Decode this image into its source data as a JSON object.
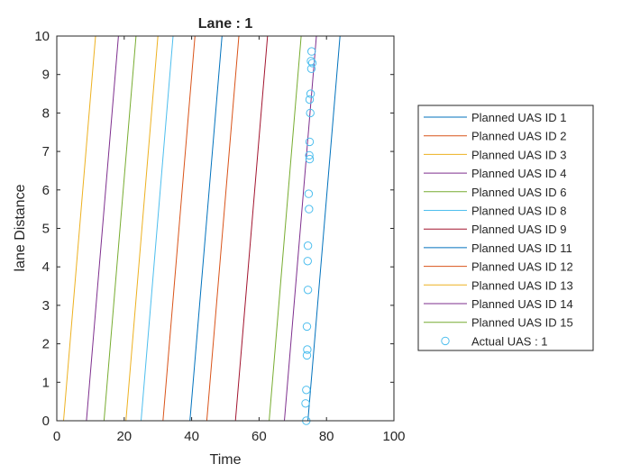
{
  "chart_data": {
    "type": "line",
    "title": "Lane : 1",
    "xlabel": "Time",
    "ylabel": "lane Distance",
    "xlim": [
      0,
      100
    ],
    "ylim": [
      0,
      10
    ],
    "x_ticks": [
      "0",
      "20",
      "40",
      "60",
      "80",
      "100"
    ],
    "y_ticks": [
      "0",
      "1",
      "2",
      "3",
      "4",
      "5",
      "6",
      "7",
      "8",
      "9",
      "10"
    ],
    "legend_position": "outside-right",
    "series": [
      {
        "name": "Planned UAS ID 1",
        "color": "#0072BD",
        "x": [
          74.5,
          84.0
        ],
        "y": [
          0,
          10
        ]
      },
      {
        "name": "Planned UAS ID 2",
        "color": "#D95319",
        "x": [
          31.5,
          41.0
        ],
        "y": [
          0,
          10
        ]
      },
      {
        "name": "Planned UAS ID 3",
        "color": "#EDB120",
        "x": [
          2.0,
          11.5
        ],
        "y": [
          0,
          10
        ]
      },
      {
        "name": "Planned UAS ID 4",
        "color": "#7E2F8E",
        "x": [
          8.8,
          18.3
        ],
        "y": [
          0,
          10
        ]
      },
      {
        "name": "Planned UAS ID 6",
        "color": "#77AC30",
        "x": [
          14.0,
          23.5
        ],
        "y": [
          0,
          10
        ]
      },
      {
        "name": "Planned UAS ID 8",
        "color": "#4DBEEE",
        "x": [
          25.0,
          34.5
        ],
        "y": [
          0,
          10
        ]
      },
      {
        "name": "Planned UAS ID 9",
        "color": "#A2142F",
        "x": [
          53.0,
          62.5
        ],
        "y": [
          0,
          10
        ]
      },
      {
        "name": "Planned UAS ID 11",
        "color": "#0072BD",
        "x": [
          39.5,
          49.0
        ],
        "y": [
          0,
          10
        ]
      },
      {
        "name": "Planned UAS ID 12",
        "color": "#D95319",
        "x": [
          44.5,
          54.0
        ],
        "y": [
          0,
          10
        ]
      },
      {
        "name": "Planned UAS ID 13",
        "color": "#EDB120",
        "x": [
          20.5,
          30.0
        ],
        "y": [
          0,
          10
        ]
      },
      {
        "name": "Planned UAS ID 14",
        "color": "#7E2F8E",
        "x": [
          67.5,
          77.0
        ],
        "y": [
          0,
          10
        ]
      },
      {
        "name": "Planned UAS ID 15",
        "color": "#77AC30",
        "x": [
          63.0,
          72.5
        ],
        "y": [
          0,
          10
        ]
      }
    ],
    "scatter": {
      "name": "Actual UAS : 1",
      "color": "#4DBEEE",
      "x": [
        74.0,
        73.8,
        74.0,
        74.2,
        74.3,
        74.2,
        74.5,
        74.4,
        74.5,
        74.8,
        74.7,
        75.0,
        74.9,
        75.0,
        75.2,
        75.0,
        75.3,
        75.5,
        75.4,
        75.8,
        75.6
      ],
      "y": [
        0.0,
        0.45,
        0.8,
        1.7,
        1.85,
        2.45,
        3.4,
        4.15,
        4.55,
        5.5,
        5.9,
        6.8,
        6.9,
        7.25,
        8.0,
        8.35,
        8.5,
        9.15,
        9.35,
        9.3,
        9.6
      ]
    }
  }
}
